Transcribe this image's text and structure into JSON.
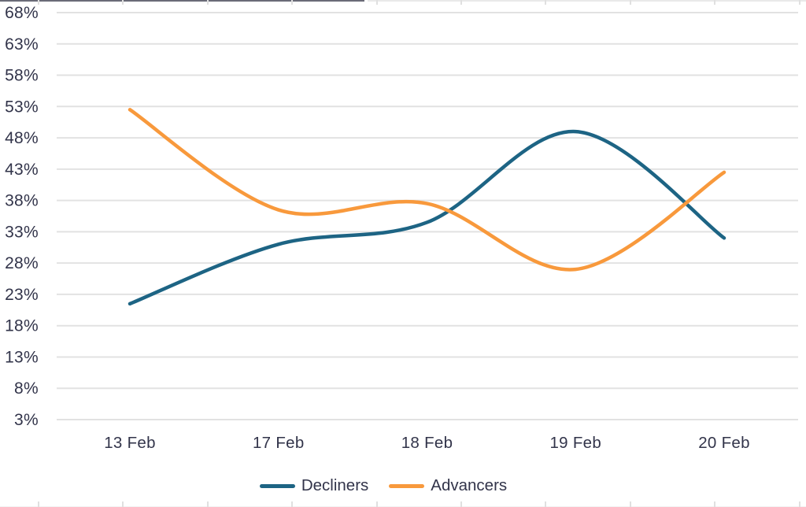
{
  "chart_data": {
    "type": "line",
    "curve": "smooth",
    "x_labels": [
      "13 Feb",
      "17 Feb",
      "18 Feb",
      "19 Feb",
      "20 Feb"
    ],
    "series": [
      {
        "name": "Decliners",
        "color": "#1d6484",
        "values": [
          21.5,
          31,
          34.5,
          49,
          32
        ]
      },
      {
        "name": "Advancers",
        "color": "#f8993c",
        "values": [
          52.5,
          36.5,
          37.5,
          27,
          42.5
        ]
      }
    ],
    "y_axis": {
      "min": 3,
      "max": 68,
      "step": 5,
      "unit": "%",
      "tick_labels": [
        "68%",
        "63%",
        "58%",
        "53%",
        "48%",
        "43%",
        "38%",
        "33%",
        "28%",
        "23%",
        "18%",
        "13%",
        "8%",
        "3%"
      ]
    },
    "grid": {
      "horizontal": true,
      "vertical": false,
      "color": "#e2e2e2"
    },
    "legend": {
      "position": "bottom",
      "items": [
        "Decliners",
        "Advancers"
      ]
    },
    "text_color": "#32344a",
    "background": "#ffffff"
  }
}
